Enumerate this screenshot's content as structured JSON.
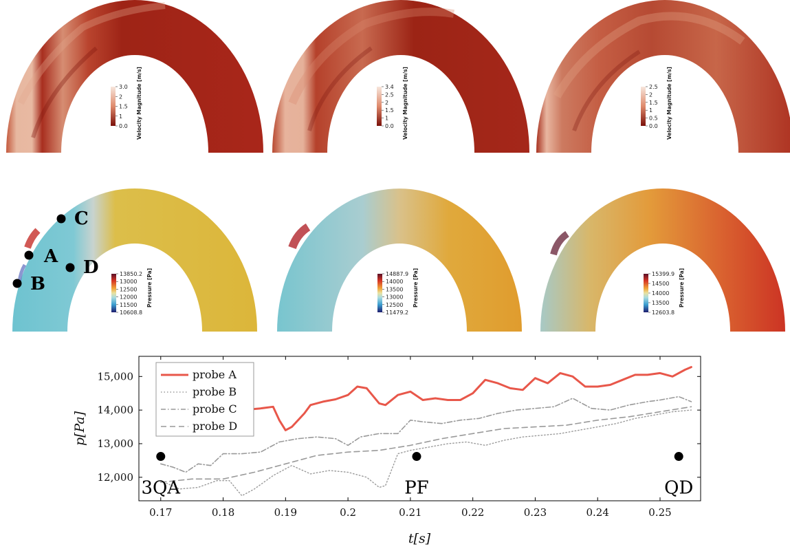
{
  "velocity_panels": [
    {
      "title": "Velocity Magnitude [m/s]",
      "ticks": [
        "3.0",
        "2",
        "1.5",
        "1",
        "0.0"
      ]
    },
    {
      "title": "Velocity Magnitude [m/s]",
      "ticks": [
        "3.4",
        "2.5",
        "2",
        "1.5",
        "1",
        "0.0"
      ]
    },
    {
      "title": "Velocity Magnitude [m/s]",
      "ticks": [
        "2.5",
        "2",
        "1.5",
        "1",
        "0.5",
        "0.0"
      ]
    }
  ],
  "pressure_panels": [
    {
      "title": "Pressure [Pa]",
      "ticks": [
        "13850.2",
        "13000",
        "12500",
        "12000",
        "11500",
        "10608.8"
      ]
    },
    {
      "title": "Pressure [Pa]",
      "ticks": [
        "14887.9",
        "14000",
        "13500",
        "13000",
        "12500",
        "11479.2"
      ]
    },
    {
      "title": "Pressure [Pa]",
      "ticks": [
        "15399.9",
        "14500",
        "14000",
        "13500",
        "12603.8"
      ]
    }
  ],
  "probes": [
    {
      "label": "A"
    },
    {
      "label": "B"
    },
    {
      "label": "C"
    },
    {
      "label": "D"
    }
  ],
  "colors": {
    "velocity_dark": "#8e1a12",
    "velocity_light": "#e8b7a0",
    "pressure_yellow": "#d9b83b",
    "pressure_cyan": "#6fc6d3",
    "pressure_red": "#cc3a26",
    "probe_a": "#e8574a",
    "probe_gray": "#999999"
  },
  "chart_data": {
    "type": "line",
    "xlabel": "t[s]",
    "ylabel": "p[Pa]",
    "xlim": [
      0.1665,
      0.2565
    ],
    "ylim": [
      11300,
      15600
    ],
    "xticks": [
      0.17,
      0.18,
      0.19,
      0.2,
      0.21,
      0.22,
      0.23,
      0.24,
      0.25
    ],
    "xtick_labels": [
      "0.17",
      "0.18",
      "0.19",
      "0.2",
      "0.21",
      "0.22",
      "0.23",
      "0.24",
      "0.25"
    ],
    "yticks": [
      12000,
      13000,
      14000,
      15000
    ],
    "ytick_labels": [
      "12,000",
      "13,000",
      "14,000",
      "15,000"
    ],
    "legend_position": "top-left",
    "series": [
      {
        "name": "probe A",
        "style": "solid",
        "x": [
          0.1705,
          0.175,
          0.18,
          0.183,
          0.186,
          0.188,
          0.189,
          0.19,
          0.191,
          0.193,
          0.194,
          0.196,
          0.198,
          0.2,
          0.2015,
          0.203,
          0.205,
          0.206,
          0.208,
          0.21,
          0.212,
          0.214,
          0.216,
          0.218,
          0.22,
          0.222,
          0.224,
          0.226,
          0.228,
          0.23,
          0.232,
          0.234,
          0.236,
          0.238,
          0.24,
          0.242,
          0.244,
          0.246,
          0.248,
          0.25,
          0.252,
          0.254,
          0.255
        ],
        "y": [
          13450,
          13650,
          13850,
          14000,
          14050,
          14100,
          13700,
          13400,
          13500,
          13900,
          14150,
          14250,
          14320,
          14450,
          14700,
          14650,
          14200,
          14150,
          14450,
          14550,
          14300,
          14350,
          14300,
          14300,
          14500,
          14900,
          14800,
          14650,
          14600,
          14950,
          14800,
          15100,
          15000,
          14700,
          14700,
          14750,
          14900,
          15050,
          15050,
          15100,
          15000,
          15200,
          15280
        ]
      },
      {
        "name": "probe B",
        "style": "dotted",
        "x": [
          0.17,
          0.173,
          0.176,
          0.179,
          0.181,
          0.183,
          0.185,
          0.188,
          0.191,
          0.194,
          0.197,
          0.2,
          0.203,
          0.205,
          0.206,
          0.208,
          0.21,
          0.213,
          0.216,
          0.219,
          0.222,
          0.225,
          0.228,
          0.231,
          0.234,
          0.237,
          0.24,
          0.243,
          0.246,
          0.249,
          0.252,
          0.255
        ],
        "y": [
          11900,
          11650,
          11700,
          11900,
          11900,
          11450,
          11650,
          12050,
          12350,
          12100,
          12200,
          12150,
          12000,
          11700,
          11750,
          12700,
          12800,
          12900,
          13000,
          13050,
          12950,
          13100,
          13200,
          13250,
          13300,
          13400,
          13500,
          13600,
          13750,
          13850,
          13950,
          14000
        ]
      },
      {
        "name": "probe C",
        "style": "dashdot",
        "x": [
          0.17,
          0.172,
          0.174,
          0.176,
          0.178,
          0.18,
          0.183,
          0.186,
          0.189,
          0.192,
          0.195,
          0.198,
          0.2,
          0.202,
          0.205,
          0.208,
          0.21,
          0.212,
          0.215,
          0.218,
          0.221,
          0.224,
          0.227,
          0.23,
          0.233,
          0.236,
          0.239,
          0.242,
          0.245,
          0.248,
          0.25,
          0.253,
          0.255
        ],
        "y": [
          12400,
          12300,
          12150,
          12400,
          12350,
          12700,
          12700,
          12750,
          13050,
          13150,
          13200,
          13150,
          12950,
          13200,
          13300,
          13300,
          13700,
          13650,
          13600,
          13700,
          13750,
          13900,
          14000,
          14050,
          14100,
          14350,
          14050,
          14000,
          14150,
          14250,
          14300,
          14400,
          14250
        ]
      },
      {
        "name": "probe D",
        "style": "dashed",
        "x": [
          0.17,
          0.175,
          0.18,
          0.185,
          0.19,
          0.195,
          0.2,
          0.205,
          0.21,
          0.215,
          0.22,
          0.225,
          0.23,
          0.235,
          0.24,
          0.245,
          0.25,
          0.255
        ],
        "y": [
          11850,
          11950,
          11950,
          12150,
          12400,
          12650,
          12750,
          12800,
          12950,
          13150,
          13300,
          13450,
          13500,
          13550,
          13700,
          13800,
          13950,
          14100
        ]
      }
    ],
    "events": [
      {
        "label": "3QA",
        "x": 0.17,
        "y": 12620
      },
      {
        "label": "PF",
        "x": 0.211,
        "y": 12620
      },
      {
        "label": "QD",
        "x": 0.253,
        "y": 12620
      }
    ]
  }
}
